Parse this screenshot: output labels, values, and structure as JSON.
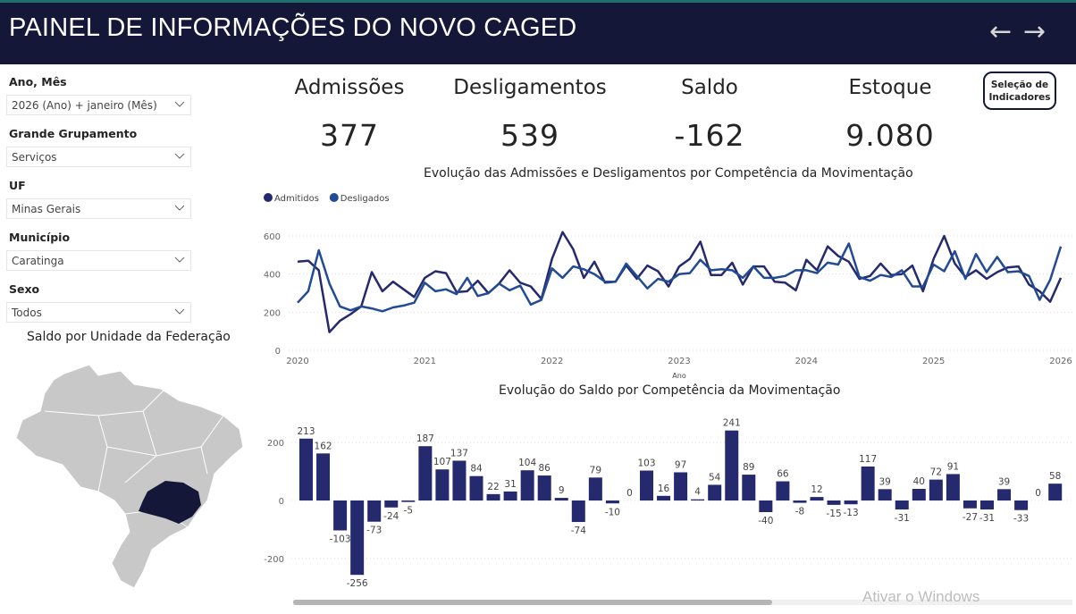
{
  "header": {
    "title": "PAINEL DE INFORMAÇÕES DO NOVO CAGED",
    "back_icon": "arrow-left",
    "forward_icon": "arrow-right"
  },
  "filters": [
    {
      "label": "Ano, Mês",
      "value": "2026 (Ano) + janeiro (Mês)"
    },
    {
      "label": "Grande Grupamento",
      "value": "Serviços"
    },
    {
      "label": "UF",
      "value": "Minas Gerais"
    },
    {
      "label": "Município",
      "value": "Caratinga"
    },
    {
      "label": "Sexo",
      "value": "Todos"
    }
  ],
  "kpis": [
    {
      "label": "Admissões",
      "value": "377"
    },
    {
      "label": "Desligamentos",
      "value": "539"
    },
    {
      "label": "Saldo",
      "value": "-162"
    },
    {
      "label": "Estoque",
      "value": "9.080"
    }
  ],
  "selection_button": {
    "line1": "Seleção de",
    "line2": "Indicadores"
  },
  "map": {
    "title": "Saldo por Unidade da Federação",
    "highlight": "Minas Gerais",
    "highlight_color": "#151739",
    "base_color": "#c8c8c8"
  },
  "watermark": "Ativar o Windows",
  "chart_data": [
    {
      "type": "line",
      "title": "Evolução das Admissões e Desligamentos por Competência da Movimentação",
      "xlabel": "Ano",
      "ylabel": "",
      "ylim": [
        0,
        650
      ],
      "yticks": [
        "0",
        "200",
        "400",
        "600"
      ],
      "xticks": [
        "2020",
        "2021",
        "2022",
        "2023",
        "2024",
        "2025",
        "2026"
      ],
      "legend_position": "top-left",
      "series": [
        {
          "name": "Admitidos",
          "color": "#252a6e",
          "values": [
            465,
            470,
            420,
            95,
            155,
            190,
            230,
            410,
            310,
            360,
            320,
            280,
            380,
            415,
            405,
            305,
            310,
            365,
            300,
            350,
            420,
            355,
            335,
            270,
            480,
            620,
            530,
            380,
            465,
            355,
            360,
            445,
            375,
            445,
            415,
            335,
            440,
            480,
            570,
            395,
            395,
            460,
            345,
            440,
            440,
            360,
            355,
            315,
            475,
            420,
            545,
            495,
            465,
            375,
            390,
            455,
            395,
            400,
            445,
            310,
            480,
            600,
            455,
            385,
            420,
            375,
            410,
            435,
            440,
            345,
            310,
            255,
            380
          ]
        },
        {
          "name": "Desligados",
          "color": "#234a94",
          "values": [
            250,
            310,
            525,
            350,
            230,
            210,
            230,
            220,
            205,
            225,
            235,
            250,
            355,
            310,
            320,
            295,
            380,
            285,
            300,
            350,
            315,
            340,
            240,
            265,
            430,
            380,
            440,
            425,
            400,
            360,
            360,
            455,
            390,
            325,
            375,
            360,
            400,
            405,
            475,
            420,
            425,
            420,
            380,
            440,
            380,
            380,
            390,
            420,
            420,
            405,
            460,
            450,
            560,
            385,
            365,
            395,
            385,
            420,
            335,
            335,
            450,
            415,
            520,
            375,
            505,
            410,
            490,
            410,
            415,
            390,
            265,
            370,
            545
          ]
        }
      ]
    },
    {
      "type": "bar",
      "title": "Evolução do Saldo por Competência da Movimentação",
      "ylim": [
        -300,
        260
      ],
      "yticks": [
        "-200",
        "0",
        "200"
      ],
      "color": "#252a6e",
      "values": [
        213,
        162,
        -103,
        -256,
        -73,
        -24,
        -5,
        187,
        107,
        137,
        84,
        22,
        31,
        104,
        86,
        9,
        -74,
        79,
        -10,
        0,
        103,
        16,
        97,
        4,
        54,
        241,
        89,
        -40,
        66,
        -8,
        12,
        -15,
        -13,
        117,
        39,
        -31,
        40,
        72,
        91,
        -27,
        -31,
        39,
        -33,
        0,
        58
      ]
    }
  ]
}
